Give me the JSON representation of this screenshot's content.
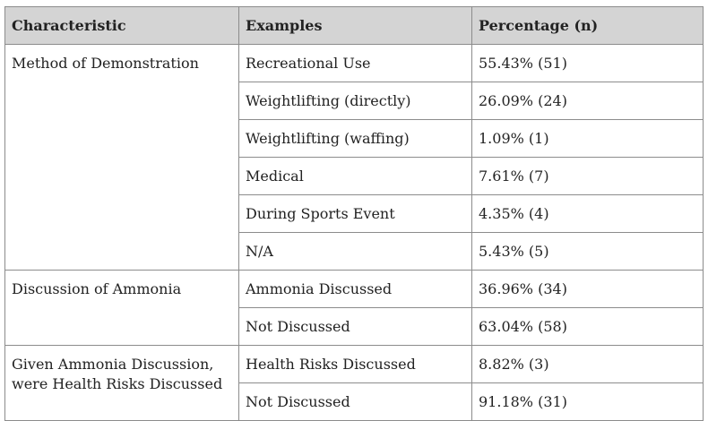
{
  "table": {
    "headers": [
      "Characteristic",
      "Examples",
      "Percentage (n)"
    ],
    "groups": [
      {
        "characteristic": "Method of Demonstration",
        "rows": [
          {
            "example": "Recreational Use",
            "percentage": "55.43% (51)"
          },
          {
            "example": "Weightlifting (directly)",
            "percentage": "26.09% (24)"
          },
          {
            "example": "Weightlifting (waffing)",
            "percentage": "1.09% (1)"
          },
          {
            "example": "Medical",
            "percentage": "7.61% (7)"
          },
          {
            "example": "During Sports Event",
            "percentage": "4.35% (4)"
          },
          {
            "example": "N/A",
            "percentage": "5.43% (5)"
          }
        ]
      },
      {
        "characteristic": "Discussion of Ammonia",
        "rows": [
          {
            "example": "Ammonia Discussed",
            "percentage": "36.96% (34)"
          },
          {
            "example": "Not Discussed",
            "percentage": "63.04% (58)"
          }
        ]
      },
      {
        "characteristic": "Given Ammonia Discussion, were Health Risks Discussed",
        "rows": [
          {
            "example": "Health Risks Discussed",
            "percentage": "8.82% (3)"
          },
          {
            "example": "Not Discussed",
            "percentage": "91.18% (31)"
          }
        ]
      }
    ]
  }
}
